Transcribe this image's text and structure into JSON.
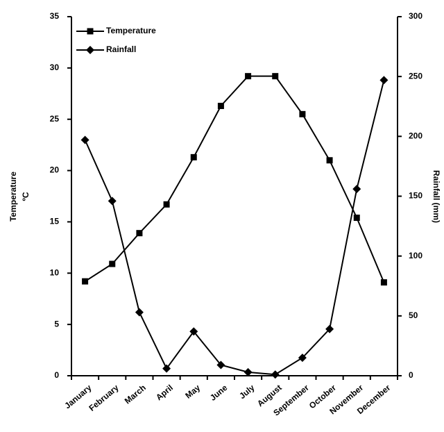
{
  "chart_data": {
    "type": "line",
    "categories": [
      "January",
      "February",
      "March",
      "April",
      "May",
      "June",
      "July",
      "August",
      "September",
      "October",
      "November",
      "December"
    ],
    "series": [
      {
        "name": "Temperature",
        "color": "#000000",
        "marker": "square",
        "values": [
          9.2,
          10.9,
          13.9,
          16.7,
          21.3,
          26.3,
          29.2,
          29.2,
          25.5,
          21.0,
          15.4,
          9.1
        ]
      },
      {
        "name": "Rainfall",
        "color": "#000000",
        "marker": "diamond",
        "axis": "y2",
        "values": [
          197,
          146,
          53,
          6,
          37,
          9,
          3,
          1,
          15,
          39,
          156,
          247
        ]
      }
    ],
    "ylabel": [
      "Temperature",
      "ºC"
    ],
    "y2label": "Rainfall (mm)",
    "ylim": [
      0,
      35
    ],
    "yticks": [
      0,
      5,
      10,
      15,
      20,
      25,
      30,
      35
    ],
    "y2lim": [
      0,
      300
    ],
    "y2ticks": [
      0,
      50,
      100,
      150,
      200,
      250,
      300
    ],
    "grid": false,
    "legend": "top-left"
  }
}
